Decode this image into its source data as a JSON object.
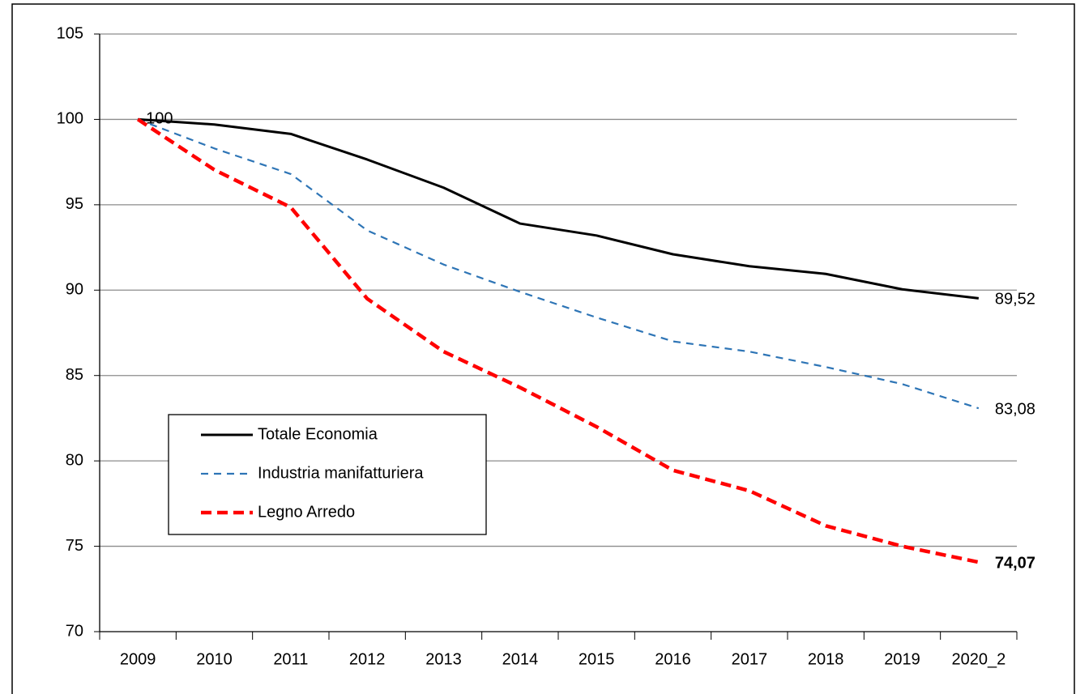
{
  "chart_data": {
    "type": "line",
    "categories": [
      "2009",
      "2010",
      "2011",
      "2012",
      "2013",
      "2014",
      "2015",
      "2016",
      "2017",
      "2018",
      "2019",
      "2020_2"
    ],
    "series": [
      {
        "name": "Totale Economia",
        "color": "#000000",
        "dash": "solid",
        "values": [
          100,
          99.7,
          99.15,
          97.65,
          96.0,
          93.9,
          93.2,
          92.1,
          91.4,
          90.95,
          90.05,
          89.52
        ],
        "value_labels": [
          "100",
          null,
          null,
          null,
          null,
          null,
          null,
          null,
          null,
          null,
          null,
          "89,52"
        ]
      },
      {
        "name": "Industria manifatturiera",
        "color": "#2e75b6",
        "dash": "dashed",
        "values": [
          100,
          98.3,
          96.8,
          93.5,
          91.5,
          89.9,
          88.4,
          87.0,
          86.4,
          85.5,
          84.5,
          83.08
        ],
        "value_labels": [
          null,
          null,
          null,
          null,
          null,
          null,
          null,
          null,
          null,
          null,
          null,
          "83,08"
        ]
      },
      {
        "name": "Legno Arredo",
        "color": "#ff0000",
        "dash": "bold-dashed",
        "values": [
          100,
          97.05,
          94.85,
          89.5,
          86.4,
          84.3,
          82.0,
          79.45,
          78.25,
          76.2,
          75.0,
          74.07
        ],
        "value_labels": [
          null,
          null,
          null,
          null,
          null,
          null,
          null,
          null,
          null,
          null,
          null,
          "74,07"
        ],
        "value_label_bold": true
      }
    ],
    "ylim": [
      70,
      105
    ],
    "yticks": [
      70,
      75,
      80,
      85,
      90,
      95,
      100,
      105
    ],
    "grid": true
  }
}
